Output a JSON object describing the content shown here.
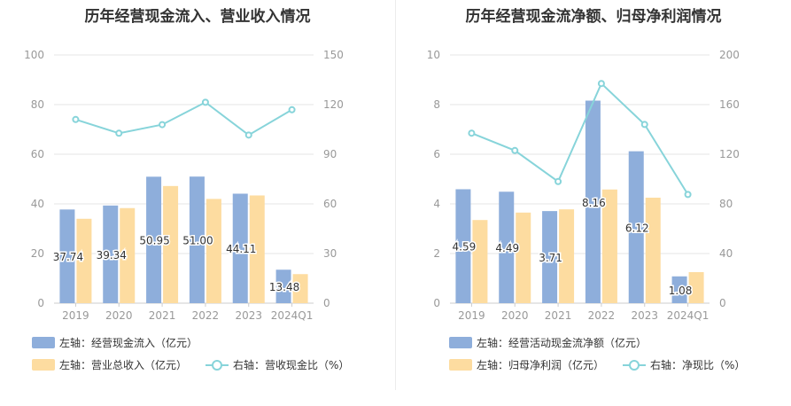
{
  "colors": {
    "bar_primary": "#8eaedb",
    "bar_secondary": "#fddca0",
    "line": "#87d4da",
    "axis_text": "#999999",
    "grid": "#e6e6e6",
    "value_label": "#333333"
  },
  "left_chart": {
    "title": "历年经营现金流入、营业收入情况",
    "legend": {
      "series1": "左轴：经营现金流入（亿元）",
      "series2": "左轴：营业总收入（亿元）",
      "series3": "右轴：营收现金比（%）"
    }
  },
  "right_chart": {
    "title": "历年经营现金流净额、归母净利润情况",
    "legend": {
      "series1": "左轴：经营活动现金流净额（亿元）",
      "series2": "左轴：归母净利润（亿元）",
      "series3": "右轴：净现比（%）"
    }
  },
  "chart_data": [
    {
      "type": "bar",
      "title": "历年经营现金流入、营业收入情况",
      "categories": [
        "2019",
        "2020",
        "2021",
        "2022",
        "2023",
        "2024Q1"
      ],
      "y_left": {
        "min": 0,
        "max": 100,
        "ticks": [
          "0",
          "20",
          "40",
          "60",
          "80",
          "100"
        ]
      },
      "y_right": {
        "min": 0,
        "max": 150,
        "ticks": [
          "0",
          "30",
          "60",
          "90",
          "120",
          "150"
        ]
      },
      "grid": true,
      "legend_position": "bottom-left",
      "series": [
        {
          "name": "左轴：经营现金流入（亿元）",
          "axis": "left",
          "kind": "bar",
          "values": [
            37.74,
            39.34,
            50.95,
            51.0,
            44.11,
            13.48
          ],
          "labels": [
            "37.74",
            "39.34",
            "50.95",
            "51.00",
            "44.11",
            "13.48"
          ]
        },
        {
          "name": "左轴：营业总收入（亿元）",
          "axis": "left",
          "kind": "bar",
          "values": [
            34.0,
            38.3,
            47.2,
            42.0,
            43.4,
            11.7
          ]
        },
        {
          "name": "右轴：营收现金比（%）",
          "axis": "right",
          "kind": "line",
          "values": [
            111,
            102.7,
            107.9,
            121.4,
            101.6,
            116.9
          ]
        }
      ]
    },
    {
      "type": "bar",
      "title": "历年经营现金流净额、归母净利润情况",
      "categories": [
        "2019",
        "2020",
        "2021",
        "2022",
        "2023",
        "2024Q1"
      ],
      "y_left": {
        "min": 0,
        "max": 10,
        "ticks": [
          "0",
          "2",
          "4",
          "6",
          "8",
          "10"
        ]
      },
      "y_right": {
        "min": 0,
        "max": 200,
        "ticks": [
          "0",
          "40",
          "80",
          "120",
          "160",
          "200"
        ]
      },
      "grid": true,
      "legend_position": "bottom-left",
      "series": [
        {
          "name": "左轴：经营活动现金流净额（亿元）",
          "axis": "left",
          "kind": "bar",
          "values": [
            4.59,
            4.49,
            3.71,
            8.16,
            6.12,
            1.08
          ],
          "labels": [
            "4.59",
            "4.49",
            "3.71",
            "8.16",
            "6.12",
            "1.08"
          ]
        },
        {
          "name": "左轴：归母净利润（亿元）",
          "axis": "left",
          "kind": "bar",
          "values": [
            3.35,
            3.65,
            3.78,
            4.58,
            4.25,
            1.25
          ]
        },
        {
          "name": "右轴：净现比（%）",
          "axis": "right",
          "kind": "line",
          "values": [
            137,
            123,
            98,
            177,
            144,
            87.6
          ]
        }
      ]
    }
  ]
}
